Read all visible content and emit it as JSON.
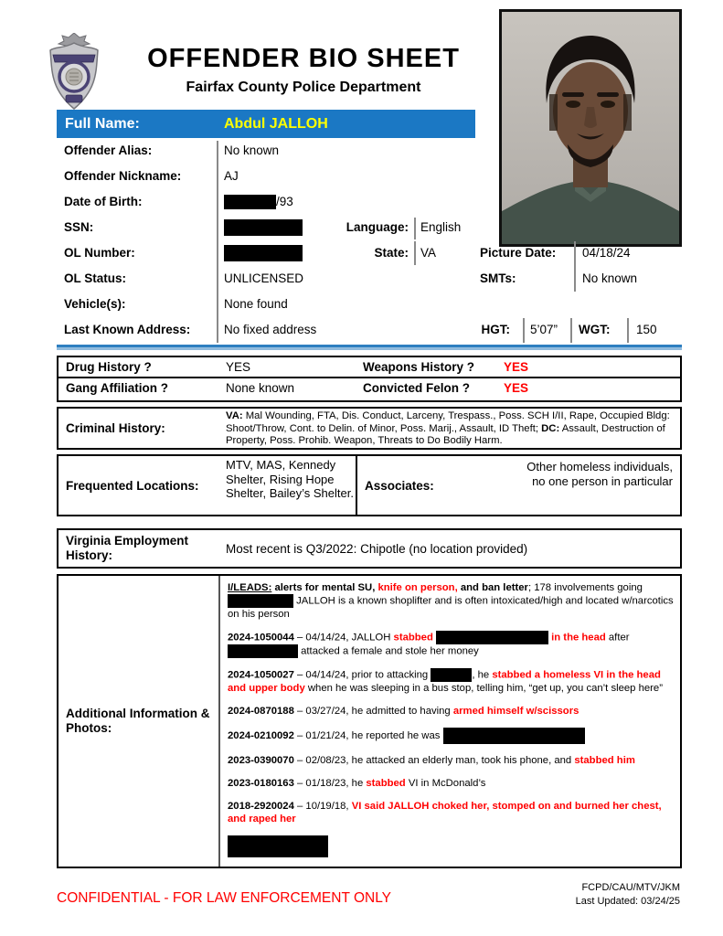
{
  "header": {
    "title": "OFFENDER BIO SHEET",
    "subtitle": "Fairfax County Police Department",
    "badge_icon": "fcpd-police-badge",
    "photo": "mugshot-photo"
  },
  "fullname": {
    "label": "Full Name:",
    "value": "Abdul JALLOH"
  },
  "fields": {
    "alias": {
      "label": "Offender Alias:",
      "value": "No known"
    },
    "nickname": {
      "label": "Offender Nickname:",
      "value": "AJ"
    },
    "dob": {
      "label": "Date of Birth:",
      "segments": [
        {
          "redact": 57,
          "h": 16
        },
        {
          "t": "/93",
          "s": "n"
        }
      ]
    },
    "ssn": {
      "label": "SSN:",
      "segments": [
        {
          "redact": 86,
          "h": 18
        }
      ]
    },
    "language": {
      "label": "Language:",
      "value": "English"
    },
    "ol_number": {
      "label": "OL Number:",
      "segments": [
        {
          "redact": 86,
          "h": 18
        }
      ]
    },
    "state": {
      "label": "State:",
      "value": "VA"
    },
    "picture_date": {
      "label": "Picture Date:",
      "value": "04/18/24"
    },
    "ol_status": {
      "label": "OL Status:",
      "value": "UNLICENSED"
    },
    "smts": {
      "label": "SMTs:",
      "value": "No known"
    },
    "vehicles": {
      "label": "Vehicle(s):",
      "value": "None found"
    },
    "address": {
      "label": "Last Known Address:",
      "value": "No fixed address"
    },
    "hgt": {
      "label": "HGT:",
      "value": "5’07”"
    },
    "wgt": {
      "label": "WGT:",
      "value": "150"
    }
  },
  "history_grid": {
    "drug": {
      "label": "Drug History ?",
      "value": "YES"
    },
    "weapons": {
      "label": "Weapons History ?",
      "value": "YES"
    },
    "gang": {
      "label": "Gang Affiliation ?",
      "value": "None known"
    },
    "felon": {
      "label": "Convicted Felon ?",
      "value": "YES"
    }
  },
  "criminal_history": {
    "label": "Criminal History:",
    "segments": [
      {
        "t": "VA:",
        "s": "b"
      },
      {
        "t": " Mal Wounding, FTA, Dis. Conduct, Larceny, Trespass., Poss. SCH I/II, Rape, Occupied Bldg: Shoot/Throw, Cont. to Delin. of Minor, Poss. Marij., Assault, ID Theft; ",
        "s": "n"
      },
      {
        "t": "DC:",
        "s": "b"
      },
      {
        "t": " Assault, Destruction of Property, Poss. Prohib. Weapon, Threats to Do Bodily Harm.",
        "s": "n"
      }
    ]
  },
  "frequented": {
    "label": "Frequented Locations:",
    "value": "MTV, MAS, Kennedy Shelter, Rising Hope Shelter, Bailey’s Shelter."
  },
  "associates": {
    "label": "Associates:",
    "value": "Other homeless individuals,\nno one person in particular"
  },
  "employment": {
    "label": "Virginia Employment History:",
    "value": "Most recent is Q3/2022: Chipotle (no location provided)"
  },
  "additional": {
    "label": "Additional Information & Photos:",
    "paragraphs": [
      [
        {
          "t": "I/LEADS:",
          "s": "bu"
        },
        {
          "t": " alerts for mental SU, ",
          "s": "b"
        },
        {
          "t": "knife on person,",
          "s": "br"
        },
        {
          "t": " and ban letter",
          "s": "b"
        },
        {
          "t": "; 178 involvements going ",
          "s": "n"
        },
        {
          "redact": 72,
          "h": 15
        },
        {
          "t": " JALLOH is a known shoplifter and is often intoxicated/high and located w/narcotics on his person",
          "s": "n"
        }
      ],
      [
        {
          "t": "2024-1050044",
          "s": "b"
        },
        {
          "t": " – 04/14/24, JALLOH ",
          "s": "n"
        },
        {
          "t": "stabbed ",
          "s": "br"
        },
        {
          "redact": 123,
          "h": 15
        },
        {
          "t": " ",
          "s": "n"
        },
        {
          "t": "in the head",
          "s": "br"
        },
        {
          "t": " after ",
          "s": "n"
        },
        {
          "redact": 77,
          "h": 15
        },
        {
          "t": " attacked a female and stole her money",
          "s": "n"
        }
      ],
      [
        {
          "t": "2024-1050027",
          "s": "b"
        },
        {
          "t": " – 04/14/24, prior to attacking ",
          "s": "n"
        },
        {
          "redact": 45,
          "h": 15
        },
        {
          "t": ", he ",
          "s": "n"
        },
        {
          "t": "stabbed a homeless VI in the head and upper body",
          "s": "br"
        },
        {
          "t": " when he was sleeping in a bus stop, telling him, “get up, you can’t sleep here”",
          "s": "n"
        }
      ],
      [
        {
          "t": "2024-0870188",
          "s": "b"
        },
        {
          "t": " – 03/27/24, he admitted to having ",
          "s": "n"
        },
        {
          "t": "armed himself w/scissors",
          "s": "br"
        }
      ],
      [
        {
          "t": "2024-0210092",
          "s": "b"
        },
        {
          "t": " – 01/21/24, he reported he was ",
          "s": "n"
        },
        {
          "redact": 155,
          "h": 18
        }
      ],
      [
        {
          "t": "2023-0390070",
          "s": "b"
        },
        {
          "t": " – 02/08/23, he attacked an elderly man, took his phone, and ",
          "s": "n"
        },
        {
          "t": "stabbed him",
          "s": "br"
        }
      ],
      [
        {
          "t": "2023-0180163",
          "s": "b"
        },
        {
          "t": " – 01/18/23, he ",
          "s": "n"
        },
        {
          "t": "stabbed",
          "s": "br"
        },
        {
          "t": " VI in McDonald’s",
          "s": "n"
        }
      ],
      [
        {
          "t": "2018-2920024",
          "s": "b"
        },
        {
          "t": " – 10/19/18, ",
          "s": "n"
        },
        {
          "t": "VI said JALLOH choked her, stomped on and burned her chest, and raped her",
          "s": "br"
        }
      ],
      [
        {
          "redact": 110,
          "h": 24
        }
      ]
    ]
  },
  "footer": {
    "confidential": "CONFIDENTIAL - FOR LAW ENFORCEMENT ONLY",
    "org": "FCPD/CAU/MTV/JKM",
    "updated": "Last Updated: 03/24/25"
  },
  "colors": {
    "header_bar_blue": "#1b78c4",
    "name_yellow": "#ffff00",
    "alert_red": "#ff0000",
    "rule_blue": "#2e7fc0"
  }
}
